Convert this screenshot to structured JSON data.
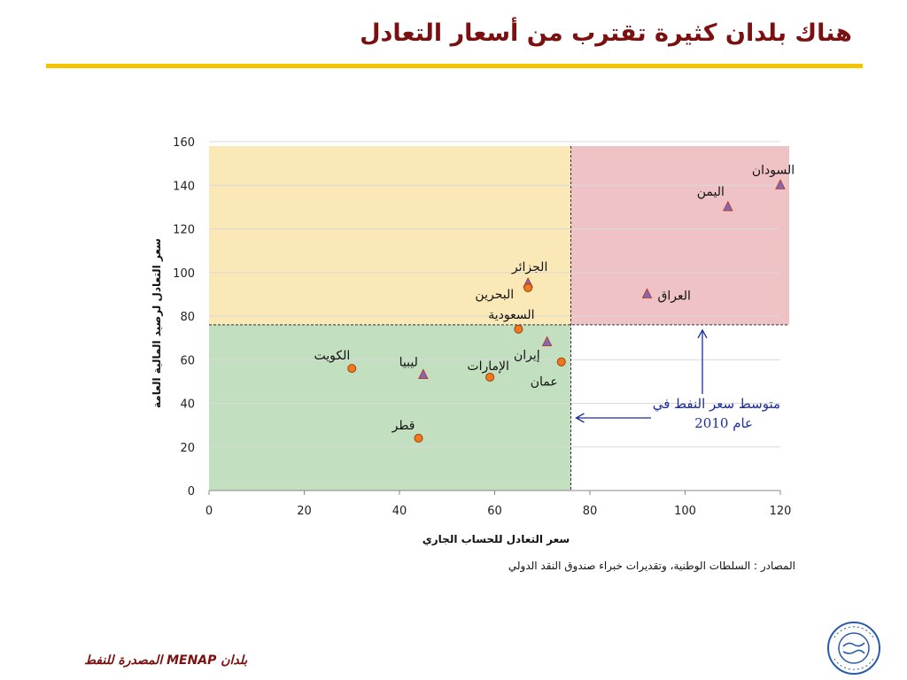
{
  "slide": {
    "title": "هناك بلدان كثيرة تقترب من أسعار التعادل",
    "source": "المصادر : السلطات الوطنية، وتقديرات خبراء صندوق النقد الدولي",
    "footer": "بلدان MENAP المصدرة للنفط",
    "logo_text": "صندوق النقد الدولي"
  },
  "colors": {
    "title": "#7a1010",
    "rule": "#f5c400",
    "zone_yellow": "#fbe8b7",
    "zone_red": "#efc3c5",
    "zone_green": "#c2dfc0",
    "marker_orange": "#f07820",
    "marker_triangle": "#7b6bbf",
    "annotation": "#1a2e9c"
  },
  "chart_data": {
    "type": "scatter",
    "xlabel": "سعر التعادل للحساب الجاري",
    "ylabel": "سعر التعادل لرصيد المالية العامة",
    "xlim": [
      0,
      120
    ],
    "ylim": [
      0,
      160
    ],
    "xticks": [
      "0",
      "20",
      "40",
      "60",
      "80",
      "100",
      "120"
    ],
    "yticks": [
      "0",
      "20",
      "40",
      "60",
      "80",
      "100",
      "120",
      "140",
      "160"
    ],
    "grid": "horizontal",
    "reference_x": 76,
    "reference_y": 76,
    "reference_label_line1": "متوسط سعر النفط في",
    "reference_label_line2": "عام 2010",
    "points": [
      {
        "label": "السودان",
        "x": 120,
        "y": 140,
        "marker": "triangle"
      },
      {
        "label": "اليمن",
        "x": 109,
        "y": 130,
        "marker": "triangle"
      },
      {
        "label": "العراق",
        "x": 92,
        "y": 90,
        "marker": "triangle"
      },
      {
        "label": "الجزائر",
        "x": 67,
        "y": 95,
        "marker": "triangle"
      },
      {
        "label": "البحرين",
        "x": 67,
        "y": 93,
        "marker": "circle"
      },
      {
        "label": "السعودية",
        "x": 65,
        "y": 74,
        "marker": "circle"
      },
      {
        "label": "إيران",
        "x": 71,
        "y": 68,
        "marker": "triangle"
      },
      {
        "label": "عمان",
        "x": 74,
        "y": 59,
        "marker": "circle"
      },
      {
        "label": "الإمارات",
        "x": 59,
        "y": 52,
        "marker": "circle"
      },
      {
        "label": "ليبيا",
        "x": 45,
        "y": 53,
        "marker": "triangle"
      },
      {
        "label": "الكويت",
        "x": 30,
        "y": 56,
        "marker": "circle"
      },
      {
        "label": "قطر",
        "x": 44,
        "y": 24,
        "marker": "circle"
      }
    ]
  }
}
